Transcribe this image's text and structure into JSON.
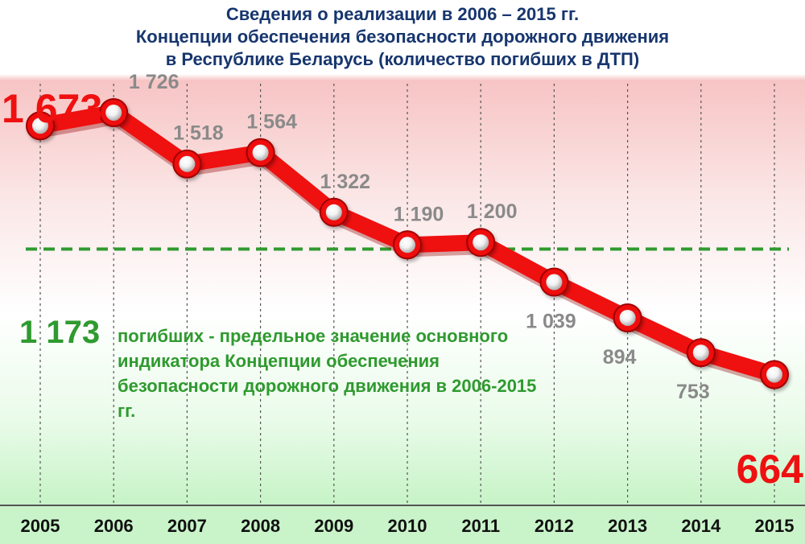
{
  "title_lines": [
    "Сведения о реализации в 2006 – 2015 гг.",
    "Концепции обеспечения безопасности дорожного движения",
    "в Республике Беларусь (количество погибших в ДТП)"
  ],
  "threshold": {
    "value": 1173,
    "label": "1 173",
    "note": "погибших - предельное значение основного индикатора Концепции обеспечения безопасности дорожного движения в 2006-2015 гг.",
    "color": "#2f9a2f"
  },
  "colors": {
    "line": "#ef1010",
    "grey_label": "#8a8a8a",
    "axis_text": "#111111",
    "title": "#17366e"
  },
  "chart_data": {
    "type": "line",
    "title": "",
    "xlabel": "",
    "ylabel": "",
    "x": [
      "2005",
      "2006",
      "2007",
      "2008",
      "2009",
      "2010",
      "2011",
      "2012",
      "2013",
      "2014",
      "2015"
    ],
    "series": [
      {
        "values": [
          1673,
          1726,
          1518,
          1564,
          1322,
          1190,
          1200,
          1039,
          894,
          753,
          664
        ]
      }
    ],
    "labels": [
      "1 673",
      "1 726",
      "1 518",
      "1 564",
      "1 322",
      "1 190",
      "1 200",
      "1 039",
      "894",
      "753",
      "664"
    ],
    "highlight_labels": [
      0,
      10
    ],
    "reference_line": {
      "value": 1173,
      "style": "dashed",
      "color": "#2f9a2f"
    },
    "grid": "vertical dashed lines at each year",
    "legend": "none"
  }
}
